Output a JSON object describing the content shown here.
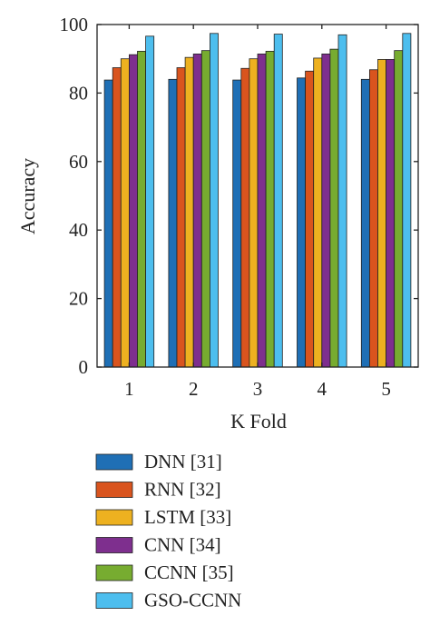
{
  "chart_data": {
    "type": "bar",
    "title": "",
    "xlabel": "K Fold",
    "ylabel": "Accuracy",
    "categories": [
      "1",
      "2",
      "3",
      "4",
      "5"
    ],
    "ylim": [
      0,
      100
    ],
    "yticks": [
      "0",
      "20",
      "40",
      "60",
      "80",
      "100"
    ],
    "grid": false,
    "legend_position": "bottom",
    "series": [
      {
        "name": "DNN [31]",
        "color": "#1f6fb5",
        "values": [
          83.8,
          84.0,
          83.8,
          84.4,
          84.0
        ]
      },
      {
        "name": "RNN [32]",
        "color": "#d9541e",
        "values": [
          87.4,
          87.4,
          87.2,
          86.4,
          86.8
        ]
      },
      {
        "name": "LSTM [33]",
        "color": "#edb120",
        "values": [
          90.0,
          90.4,
          90.0,
          90.2,
          89.8
        ]
      },
      {
        "name": "CNN [34]",
        "color": "#7e2f8e",
        "values": [
          91.2,
          91.4,
          91.4,
          91.4,
          89.8
        ]
      },
      {
        "name": "CCNN [35]",
        "color": "#77ac30",
        "values": [
          92.2,
          92.4,
          92.2,
          92.8,
          92.4
        ]
      },
      {
        "name": "GSO-CCNN",
        "color": "#4dbeee",
        "values": [
          96.6,
          97.4,
          97.2,
          97.0,
          97.4
        ]
      }
    ]
  }
}
